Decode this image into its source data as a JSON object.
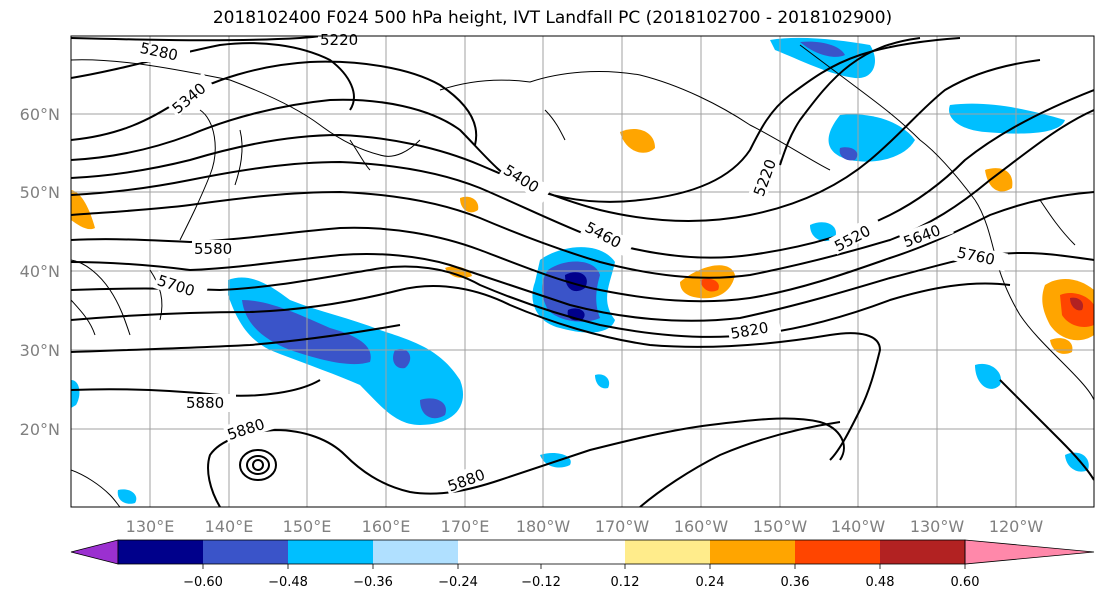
{
  "title": "2018102400 F024 500 hPa height, IVT Landfall PC (2018102700 - 2018102900)",
  "lat_ticks": [
    "60°N",
    "50°N",
    "40°N",
    "30°N",
    "20°N"
  ],
  "lon_ticks": [
    "130°E",
    "140°E",
    "150°E",
    "160°E",
    "170°E",
    "180°W",
    "170°W",
    "160°W",
    "150°W",
    "140°W",
    "130°W",
    "120°W"
  ],
  "contour_labels": [
    "5220",
    "5280",
    "5340",
    "5400",
    "5460",
    "5520",
    "5580",
    "5640",
    "5700",
    "5760",
    "5820",
    "5880",
    "5880",
    "5880",
    "5220"
  ],
  "colorbar": {
    "ticks": [
      "−0.60",
      "−0.48",
      "−0.36",
      "−0.24",
      "−0.12",
      "0.12",
      "0.24",
      "0.36",
      "0.48",
      "0.60"
    ],
    "colors": [
      "#9b30d0",
      "#00008b",
      "#3a54c9",
      "#00bfff",
      "#b0e0ff",
      "#ffffff",
      "#ffec8b",
      "#ffa500",
      "#ff4500",
      "#b22222",
      "#ff88aa"
    ]
  }
}
